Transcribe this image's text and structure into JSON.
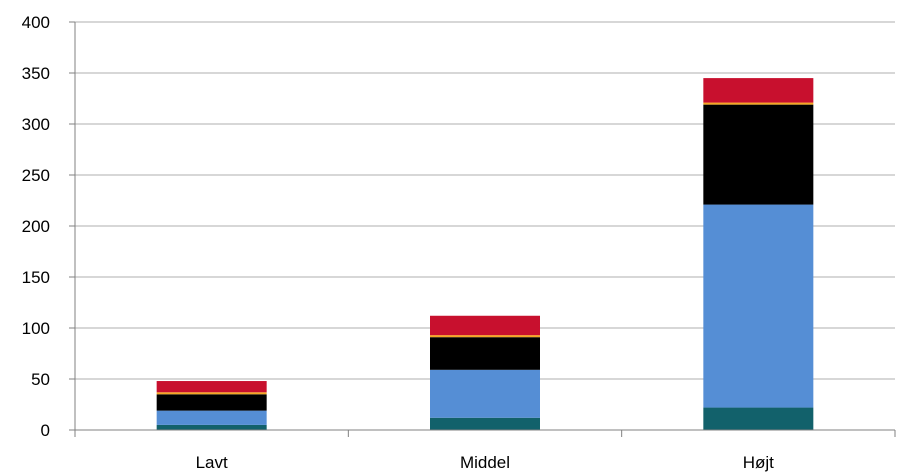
{
  "chart_data": {
    "type": "bar",
    "stacked": true,
    "categories": [
      "Lavt",
      "Middel",
      "Højt"
    ],
    "series": [
      {
        "color": "#12616b",
        "values": [
          5,
          12,
          22
        ]
      },
      {
        "color": "#558ed5",
        "values": [
          14,
          47,
          199
        ]
      },
      {
        "color": "#000000",
        "values": [
          16,
          32,
          98
        ]
      },
      {
        "color": "#f5a623",
        "values": [
          2,
          2,
          2
        ]
      },
      {
        "color": "#c8102e",
        "values": [
          11,
          19,
          24
        ]
      }
    ],
    "ylim": [
      0,
      400
    ],
    "yticks": [
      0,
      50,
      100,
      150,
      200,
      250,
      300,
      350,
      400
    ],
    "grid": true,
    "legend": "none"
  }
}
